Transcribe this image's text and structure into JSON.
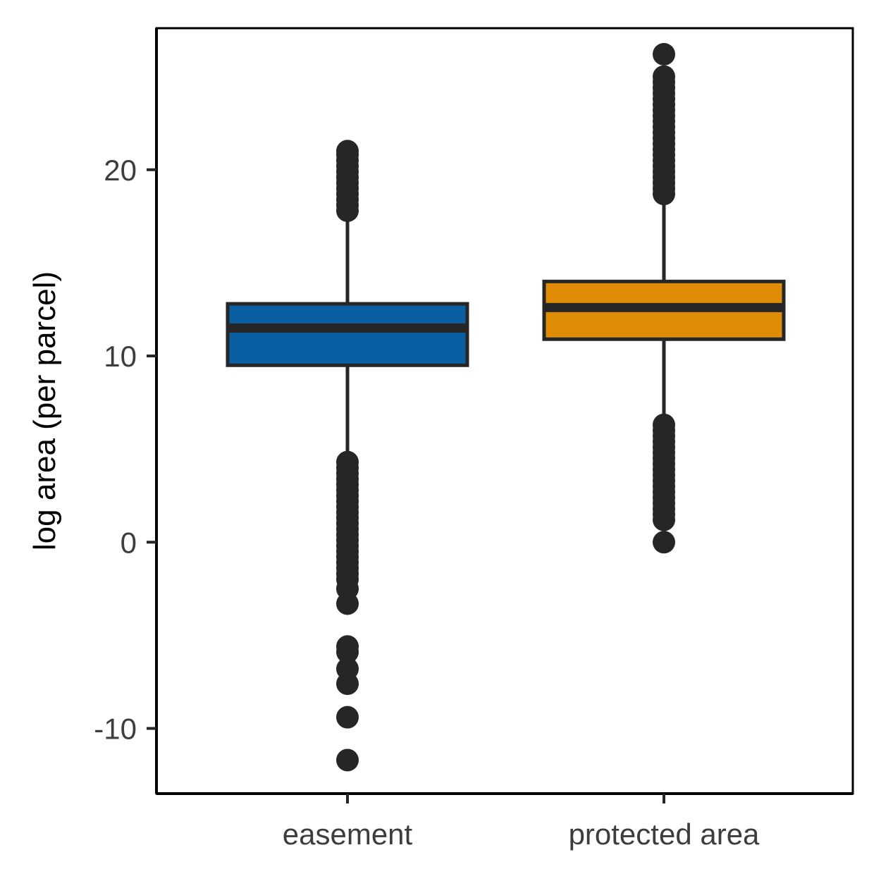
{
  "chart_data": {
    "type": "boxplot",
    "xlabel": "",
    "ylabel": "log area (per parcel)",
    "ylim": [
      -13.5,
      27.6
    ],
    "yticks": [
      -10,
      0,
      10,
      20
    ],
    "ytick_labels": [
      "-10",
      "0",
      "10",
      "20"
    ],
    "grid": false,
    "categories": [
      "easement",
      "protected area"
    ],
    "boxes": [
      {
        "category": "easement",
        "color": "#0a5fa3",
        "whisker_low": 4.5,
        "q1": 9.5,
        "median": 11.5,
        "q3": 12.8,
        "whisker_high": 17.9,
        "outliers": [
          21.0,
          20.8,
          20.5,
          20.2,
          19.9,
          19.6,
          19.3,
          19.0,
          18.7,
          18.4,
          18.1,
          17.8,
          4.3,
          4.0,
          3.7,
          3.4,
          3.1,
          2.8,
          2.5,
          2.2,
          1.9,
          1.6,
          1.3,
          1.0,
          0.7,
          0.4,
          0.1,
          -0.2,
          -0.5,
          -0.8,
          -1.1,
          -1.4,
          -1.7,
          -2.0,
          -2.5,
          -3.3,
          -5.6,
          -5.9,
          -6.8,
          -7.6,
          -9.4,
          -11.7
        ]
      },
      {
        "category": "protected area",
        "color": "#df8c07",
        "whisker_low": 6.5,
        "q1": 10.9,
        "median": 12.6,
        "q3": 14.0,
        "whisker_high": 18.6,
        "outliers": [
          26.2,
          25.0,
          24.7,
          24.4,
          24.1,
          23.8,
          23.5,
          23.2,
          22.9,
          22.6,
          22.3,
          22.0,
          21.7,
          21.4,
          21.1,
          20.8,
          20.5,
          20.2,
          19.9,
          19.6,
          19.3,
          19.0,
          18.7,
          6.3,
          6.0,
          5.7,
          5.4,
          5.1,
          4.8,
          4.5,
          4.2,
          3.9,
          3.6,
          3.3,
          3.0,
          2.7,
          2.4,
          2.1,
          1.8,
          1.5,
          1.2,
          0.0
        ]
      }
    ],
    "colors": {
      "axis": "#000000",
      "outline": "#262626",
      "tick_text": "#3d3d3d"
    }
  }
}
